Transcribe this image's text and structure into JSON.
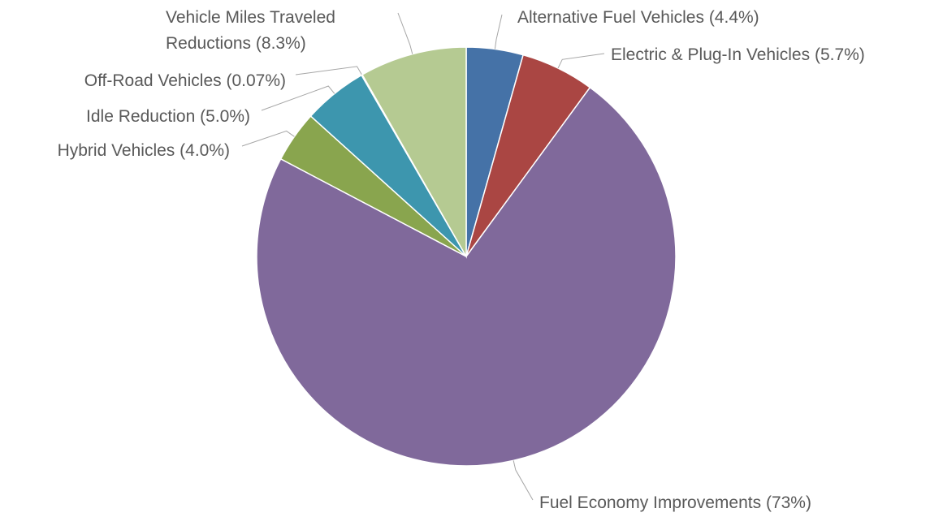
{
  "chart_data": {
    "type": "pie",
    "categories": [
      "Alternative Fuel Vehicles",
      "Electric & Plug-In Vehicles",
      "Fuel Economy Improvements",
      "Hybrid Vehicles",
      "Idle Reduction",
      "Off-Road Vehicles",
      "Vehicle Miles Traveled Reductions"
    ],
    "values": [
      4.4,
      5.7,
      73,
      4.0,
      5.0,
      0.07,
      8.3
    ],
    "value_labels": [
      "(4.4%)",
      "(5.7%)",
      "(73%)",
      "(4.0%)",
      "(5.0%)",
      "(0.07%)",
      "(8.3%)"
    ],
    "colors": [
      "#4572a7",
      "#aa4643",
      "#80699b",
      "#89a54e",
      "#3d96ae",
      "#db843d",
      "#b5ca92"
    ]
  }
}
